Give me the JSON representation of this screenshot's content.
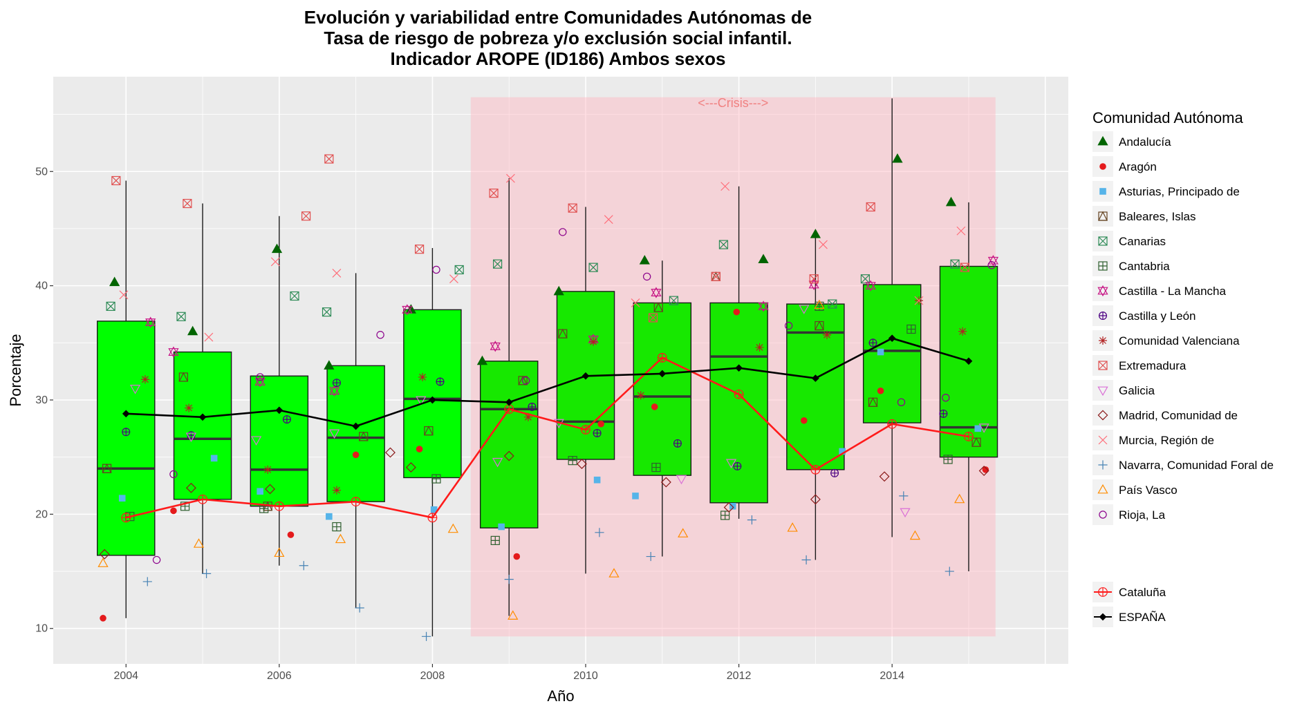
{
  "chart_data": {
    "type": "boxplot",
    "title_lines": [
      "Evolución y variabilidad entre Comunidades Autónomas de",
      "Tasa de riesgo de pobreza y/o exclusión social infantil.",
      "Indicador AROPE (ID186) Ambos sexos"
    ],
    "xlabel": "Año",
    "ylabel": "Porcentaje",
    "xlim": [
      2003.05,
      2016.3
    ],
    "ylim": [
      6.9,
      58.3
    ],
    "x_ticks": [
      2004,
      2006,
      2008,
      2010,
      2012,
      2014
    ],
    "y_ticks": [
      10,
      20,
      30,
      40,
      50
    ],
    "crisis": {
      "label": "<---Crisis--->",
      "x_start": 2008.5,
      "x_end": 2015.35,
      "y_start": 9.3,
      "y_end": 56.5
    },
    "legend_title": "Comunidad Autónoma",
    "boxes": [
      {
        "year": 2004,
        "min": 10.9,
        "q1": 16.4,
        "median": 24.0,
        "q3": 36.9,
        "max": 49.2,
        "color": "#00ff00"
      },
      {
        "year": 2005,
        "min": 14.8,
        "q1": 21.3,
        "median": 26.6,
        "q3": 34.2,
        "max": 47.2,
        "color": "#00ff00"
      },
      {
        "year": 2006,
        "min": 15.5,
        "q1": 20.7,
        "median": 23.9,
        "q3": 32.1,
        "max": 46.1,
        "color": "#00ff00"
      },
      {
        "year": 2007,
        "min": 11.8,
        "q1": 21.1,
        "median": 26.7,
        "q3": 33.0,
        "max": 41.1,
        "color": "#00ff00"
      },
      {
        "year": 2008,
        "min": 9.3,
        "q1": 23.2,
        "median": 30.1,
        "q3": 37.9,
        "max": 43.3,
        "color": "#00ff00"
      },
      {
        "year": 2009,
        "min": 11.1,
        "q1": 18.8,
        "median": 29.2,
        "q3": 33.4,
        "max": 49.4,
        "color": "#17e800"
      },
      {
        "year": 2010,
        "min": 14.8,
        "q1": 24.8,
        "median": 28.1,
        "q3": 39.5,
        "max": 46.9,
        "color": "#17e800"
      },
      {
        "year": 2011,
        "min": 16.3,
        "q1": 23.4,
        "median": 30.3,
        "q3": 38.5,
        "max": 42.2,
        "color": "#17e800"
      },
      {
        "year": 2012,
        "min": 19.6,
        "q1": 21.0,
        "median": 33.8,
        "q3": 38.5,
        "max": 48.7,
        "color": "#17e800"
      },
      {
        "year": 2013,
        "min": 16.0,
        "q1": 23.9,
        "median": 35.9,
        "q3": 38.4,
        "max": 44.6,
        "color": "#17e800"
      },
      {
        "year": 2014,
        "min": 18.0,
        "q1": 28.0,
        "median": 34.3,
        "q3": 40.1,
        "max": 56.4,
        "color": "#17e800"
      },
      {
        "year": 2015,
        "min": 15.0,
        "q1": 25.0,
        "median": 27.6,
        "q3": 41.7,
        "max": 47.3,
        "color": "#17e800"
      }
    ],
    "series": [
      {
        "name": "Andalucía",
        "shape": "triangle-filled",
        "color": "#006400",
        "points": [
          [
            2003.85,
            40.3
          ],
          [
            2004.87,
            36.0
          ],
          [
            2005.97,
            43.2
          ],
          [
            2006.65,
            33.0
          ],
          [
            2007.72,
            37.9
          ],
          [
            2008.65,
            33.4
          ],
          [
            2009.65,
            39.5
          ],
          [
            2010.77,
            42.2
          ],
          [
            2012.32,
            42.3
          ],
          [
            2013.0,
            44.5
          ],
          [
            2014.07,
            51.1
          ],
          [
            2014.77,
            47.3
          ]
        ]
      },
      {
        "name": "Aragón",
        "shape": "circle-filled",
        "color": "#e41a1c",
        "points": [
          [
            2003.7,
            10.9
          ],
          [
            2004.62,
            20.3
          ],
          [
            2006.15,
            18.2
          ],
          [
            2007.0,
            25.2
          ],
          [
            2007.83,
            25.7
          ],
          [
            2009.1,
            16.3
          ],
          [
            2010.2,
            27.9
          ],
          [
            2010.9,
            29.4
          ],
          [
            2011.97,
            37.7
          ],
          [
            2012.85,
            28.2
          ],
          [
            2013.85,
            30.8
          ],
          [
            2015.22,
            23.9
          ]
        ]
      },
      {
        "name": "Asturias, Principado de",
        "shape": "square-filled",
        "color": "#56b4e9",
        "points": [
          [
            2003.95,
            21.4
          ],
          [
            2005.15,
            24.9
          ],
          [
            2005.75,
            22.0
          ],
          [
            2006.65,
            19.8
          ],
          [
            2008.02,
            20.4
          ],
          [
            2008.9,
            18.9
          ],
          [
            2010.15,
            23.0
          ],
          [
            2010.65,
            21.6
          ],
          [
            2011.92,
            20.7
          ],
          [
            2013.35,
            25.5
          ],
          [
            2013.85,
            34.2
          ],
          [
            2015.12,
            27.5
          ]
        ]
      },
      {
        "name": "Baleares, Islas",
        "shape": "square-triangle",
        "color": "#654321",
        "points": [
          [
            2003.75,
            24.0
          ],
          [
            2004.75,
            32.0
          ],
          [
            2005.85,
            20.7
          ],
          [
            2007.1,
            26.8
          ],
          [
            2007.95,
            27.3
          ],
          [
            2009.18,
            31.7
          ],
          [
            2009.7,
            35.8
          ],
          [
            2010.95,
            38.1
          ],
          [
            2011.7,
            40.8
          ],
          [
            2013.05,
            36.5
          ],
          [
            2013.75,
            29.8
          ],
          [
            2015.1,
            26.3
          ]
        ]
      },
      {
        "name": "Canarias",
        "shape": "square-x",
        "color": "#2e8b57",
        "points": [
          [
            2003.8,
            38.2
          ],
          [
            2004.72,
            37.3
          ],
          [
            2006.2,
            39.1
          ],
          [
            2006.62,
            37.7
          ],
          [
            2008.35,
            41.4
          ],
          [
            2008.85,
            41.9
          ],
          [
            2010.1,
            41.6
          ],
          [
            2011.15,
            38.7
          ],
          [
            2011.8,
            43.6
          ],
          [
            2013.22,
            38.4
          ],
          [
            2013.65,
            40.6
          ],
          [
            2014.82,
            41.9
          ]
        ]
      },
      {
        "name": "Cantabria",
        "shape": "square-plus",
        "color": "#2f5f2f",
        "points": [
          [
            2004.05,
            19.8
          ],
          [
            2004.77,
            20.7
          ],
          [
            2005.8,
            20.5
          ],
          [
            2006.75,
            18.9
          ],
          [
            2008.05,
            23.1
          ],
          [
            2008.82,
            17.7
          ],
          [
            2009.83,
            24.7
          ],
          [
            2010.92,
            24.1
          ],
          [
            2011.82,
            19.9
          ],
          [
            2013.05,
            38.2
          ],
          [
            2014.25,
            36.2
          ],
          [
            2014.73,
            24.8
          ]
        ]
      },
      {
        "name": "Castilla - La Mancha",
        "shape": "star-of-david",
        "color": "#c71585",
        "points": [
          [
            2004.32,
            36.8
          ],
          [
            2004.62,
            34.2
          ],
          [
            2005.75,
            31.6
          ],
          [
            2006.72,
            30.8
          ],
          [
            2007.67,
            37.9
          ],
          [
            2008.82,
            34.7
          ],
          [
            2010.1,
            35.3
          ],
          [
            2010.92,
            39.4
          ],
          [
            2012.32,
            38.2
          ],
          [
            2012.98,
            40.1
          ],
          [
            2013.72,
            40.0
          ],
          [
            2015.32,
            42.2
          ]
        ]
      },
      {
        "name": "Castilla y León",
        "shape": "circle-plus",
        "color": "#4b0082",
        "points": [
          [
            2004.0,
            27.2
          ],
          [
            2004.85,
            26.9
          ],
          [
            2006.1,
            28.3
          ],
          [
            2006.75,
            31.5
          ],
          [
            2008.1,
            31.6
          ],
          [
            2009.3,
            29.4
          ],
          [
            2010.15,
            27.1
          ],
          [
            2011.2,
            26.2
          ],
          [
            2011.98,
            24.2
          ],
          [
            2013.25,
            23.6
          ],
          [
            2013.75,
            35.0
          ],
          [
            2014.67,
            28.8
          ]
        ]
      },
      {
        "name": "Comunidad Valenciana",
        "shape": "asterisk",
        "color": "#b22222",
        "points": [
          [
            2004.25,
            31.8
          ],
          [
            2004.82,
            29.3
          ],
          [
            2005.85,
            23.9
          ],
          [
            2006.75,
            22.1
          ],
          [
            2007.87,
            32.0
          ],
          [
            2009.25,
            28.5
          ],
          [
            2010.1,
            35.1
          ],
          [
            2010.72,
            30.4
          ],
          [
            2012.27,
            34.6
          ],
          [
            2013.15,
            35.7
          ],
          [
            2014.35,
            38.7
          ],
          [
            2014.92,
            36.0
          ]
        ]
      },
      {
        "name": "Extremadura",
        "shape": "square-x",
        "color": "#e05050",
        "points": [
          [
            2003.87,
            49.2
          ],
          [
            2004.8,
            47.2
          ],
          [
            2006.35,
            46.1
          ],
          [
            2006.65,
            51.1
          ],
          [
            2007.83,
            43.2
          ],
          [
            2008.8,
            48.1
          ],
          [
            2009.83,
            46.8
          ],
          [
            2010.88,
            37.2
          ],
          [
            2011.7,
            40.8
          ],
          [
            2012.98,
            40.6
          ],
          [
            2013.72,
            46.9
          ],
          [
            2014.95,
            41.6
          ]
        ]
      },
      {
        "name": "Galicia",
        "shape": "triangle-down",
        "color": "#da70d6",
        "points": [
          [
            2004.12,
            31.0
          ],
          [
            2004.85,
            26.8
          ],
          [
            2005.7,
            26.5
          ],
          [
            2006.72,
            27.1
          ],
          [
            2007.85,
            30.0
          ],
          [
            2008.85,
            24.6
          ],
          [
            2009.65,
            28.0
          ],
          [
            2011.25,
            23.1
          ],
          [
            2011.9,
            24.5
          ],
          [
            2012.85,
            38.0
          ],
          [
            2014.17,
            20.2
          ],
          [
            2015.2,
            27.6
          ]
        ]
      },
      {
        "name": "Madrid, Comunidad de",
        "shape": "diamond",
        "color": "#8b1a1a",
        "points": [
          [
            2003.72,
            16.5
          ],
          [
            2004.85,
            22.3
          ],
          [
            2005.88,
            22.2
          ],
          [
            2007.45,
            25.4
          ],
          [
            2007.72,
            24.1
          ],
          [
            2009.0,
            25.1
          ],
          [
            2009.95,
            24.4
          ],
          [
            2011.05,
            22.8
          ],
          [
            2011.87,
            20.6
          ],
          [
            2013.0,
            21.3
          ],
          [
            2013.9,
            23.3
          ],
          [
            2015.2,
            23.8
          ]
        ]
      },
      {
        "name": "Murcia, Región de",
        "shape": "x",
        "color": "#ff6e7a",
        "points": [
          [
            2003.97,
            39.2
          ],
          [
            2005.08,
            35.5
          ],
          [
            2005.95,
            42.1
          ],
          [
            2006.75,
            41.1
          ],
          [
            2008.28,
            40.6
          ],
          [
            2009.02,
            49.4
          ],
          [
            2010.3,
            45.8
          ],
          [
            2010.65,
            38.5
          ],
          [
            2011.82,
            48.7
          ],
          [
            2013.1,
            43.6
          ],
          [
            2014.35,
            38.7
          ],
          [
            2014.9,
            44.8
          ]
        ]
      },
      {
        "name": "Navarra, Comunidad Foral de",
        "shape": "plus",
        "color": "#4682b4",
        "points": [
          [
            2004.28,
            14.1
          ],
          [
            2005.05,
            14.8
          ],
          [
            2006.32,
            15.5
          ],
          [
            2007.05,
            11.8
          ],
          [
            2007.92,
            9.3
          ],
          [
            2009.0,
            14.3
          ],
          [
            2010.18,
            18.4
          ],
          [
            2010.85,
            16.3
          ],
          [
            2012.17,
            19.5
          ],
          [
            2012.88,
            16.0
          ],
          [
            2014.15,
            21.6
          ],
          [
            2014.75,
            15.0
          ]
        ]
      },
      {
        "name": "País Vasco",
        "shape": "triangle-open",
        "color": "#ff8c00",
        "points": [
          [
            2003.7,
            15.7
          ],
          [
            2004.95,
            17.4
          ],
          [
            2006.0,
            16.6
          ],
          [
            2006.8,
            17.8
          ],
          [
            2008.27,
            18.7
          ],
          [
            2009.05,
            11.1
          ],
          [
            2010.37,
            14.8
          ],
          [
            2011.27,
            18.3
          ],
          [
            2012.7,
            18.8
          ],
          [
            2013.05,
            38.3
          ],
          [
            2014.3,
            18.1
          ],
          [
            2014.88,
            21.3
          ]
        ]
      },
      {
        "name": "Rioja, La",
        "shape": "circle-open",
        "color": "#8b008b",
        "points": [
          [
            2004.4,
            16.0
          ],
          [
            2004.62,
            23.5
          ],
          [
            2005.75,
            32.0
          ],
          [
            2007.32,
            35.7
          ],
          [
            2008.05,
            41.4
          ],
          [
            2009.22,
            31.7
          ],
          [
            2009.7,
            44.7
          ],
          [
            2010.8,
            40.8
          ],
          [
            2012.65,
            36.5
          ],
          [
            2014.12,
            29.8
          ],
          [
            2014.7,
            30.2
          ],
          [
            2015.3,
            41.8
          ]
        ]
      }
    ],
    "lines": [
      {
        "name": "Cataluña",
        "shape": "circle-plus",
        "color": "#ff1a1a",
        "points": [
          [
            2004,
            19.7
          ],
          [
            2005,
            21.3
          ],
          [
            2006,
            20.7
          ],
          [
            2007,
            21.1
          ],
          [
            2008,
            19.7
          ],
          [
            2009,
            29.2
          ],
          [
            2010,
            27.4
          ],
          [
            2011,
            33.7
          ],
          [
            2012,
            30.5
          ],
          [
            2013,
            23.9
          ],
          [
            2014,
            27.9
          ],
          [
            2015,
            26.8
          ]
        ]
      },
      {
        "name": "ESPAÑA",
        "shape": "diamond-filled",
        "color": "#000000",
        "points": [
          [
            2004,
            28.8
          ],
          [
            2005,
            28.5
          ],
          [
            2006,
            29.1
          ],
          [
            2007,
            27.7
          ],
          [
            2008,
            30.0
          ],
          [
            2009,
            29.8
          ],
          [
            2010,
            32.1
          ],
          [
            2011,
            32.3
          ],
          [
            2012,
            32.8
          ],
          [
            2013,
            31.9
          ],
          [
            2014,
            35.4
          ],
          [
            2015,
            33.4
          ]
        ]
      }
    ]
  }
}
